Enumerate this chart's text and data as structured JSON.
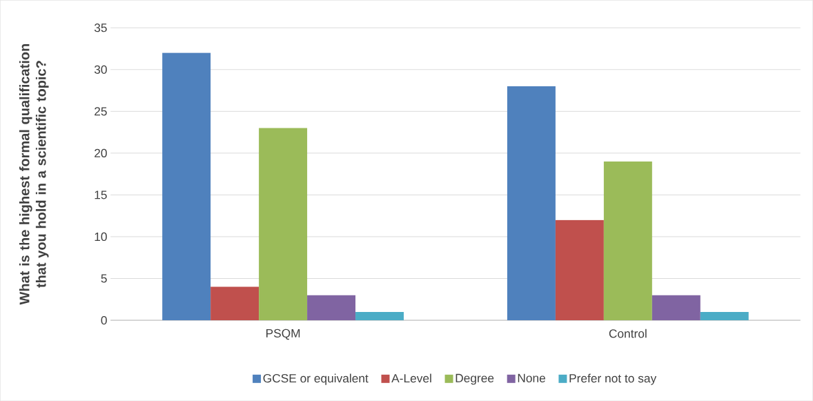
{
  "chart_data": {
    "type": "bar",
    "ylabel": "What is the highest formal qualification that you hold in a scientific topic?",
    "categories": [
      "PSQM",
      "Control"
    ],
    "series": [
      {
        "name": "GCSE or equivalent",
        "color": "#4f81bd",
        "values": [
          32,
          28
        ]
      },
      {
        "name": "A-Level",
        "color": "#c0504d",
        "values": [
          4,
          12
        ]
      },
      {
        "name": "Degree",
        "color": "#9bbb59",
        "values": [
          23,
          19
        ]
      },
      {
        "name": "None",
        "color": "#8064a2",
        "values": [
          3,
          3
        ]
      },
      {
        "name": "Prefer not to say",
        "color": "#4bacc6",
        "values": [
          1,
          1
        ]
      }
    ],
    "ylim": [
      0,
      35
    ],
    "yticks": [
      0,
      5,
      10,
      15,
      20,
      25,
      30,
      35
    ],
    "grid": "y",
    "legend": "bottom"
  }
}
